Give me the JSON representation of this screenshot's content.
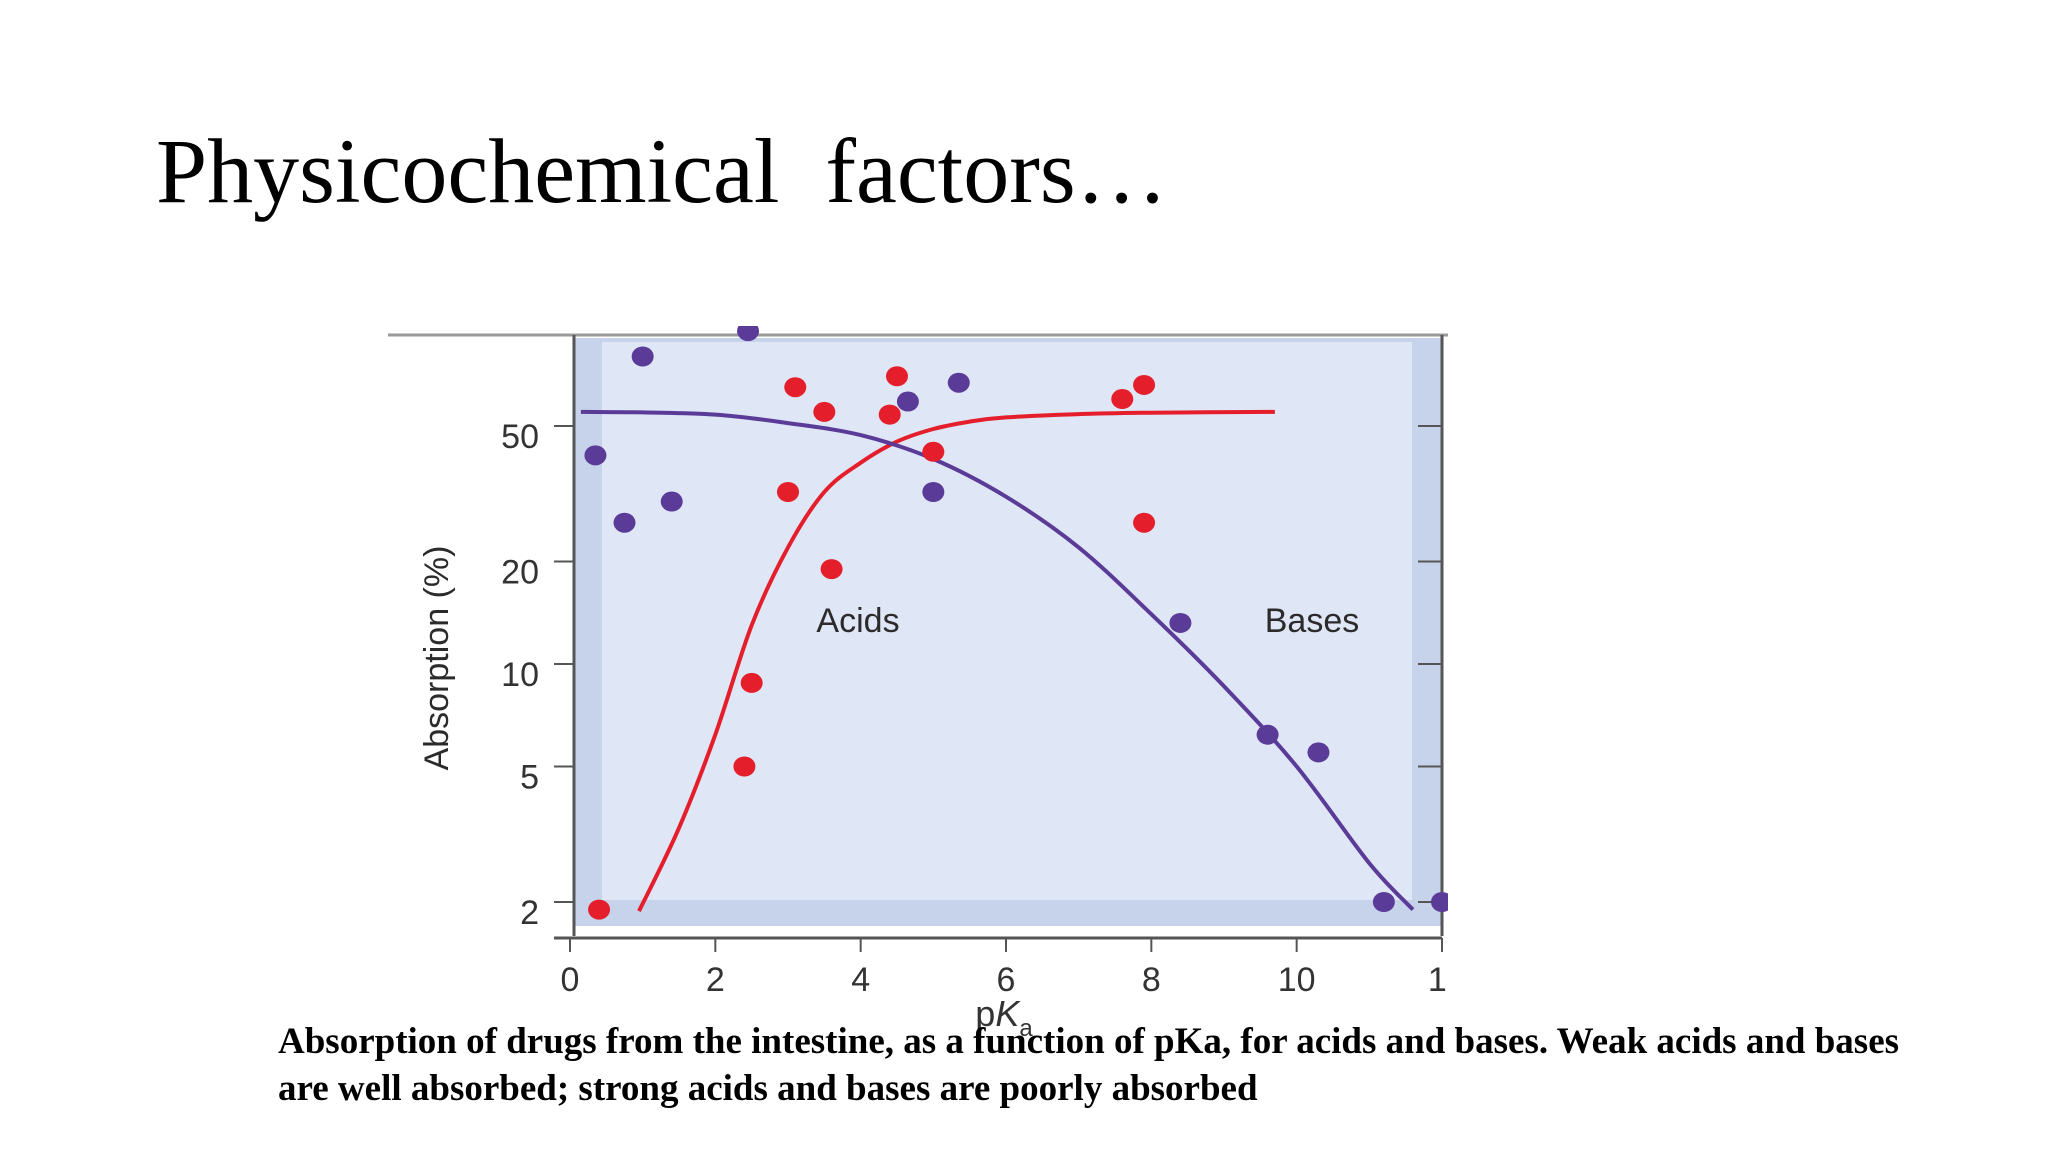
{
  "slide": {
    "title": "Physicochemical  factors…",
    "caption": "Absorption of drugs from the intestine, as a function of pKa, for acids and bases. Weak acids and bases are well absorbed; strong acids and bases are poorly absorbed"
  },
  "chart_data": {
    "type": "scatter",
    "title": "",
    "xlabel": "pKa",
    "ylabel": "Absorption (%)",
    "xlim": [
      0,
      12
    ],
    "ylim": [
      1.75,
      100
    ],
    "yscale": "log",
    "x_ticks": [
      0,
      2,
      4,
      6,
      8,
      10,
      12
    ],
    "x_tick_labels": [
      "0",
      "2",
      "4",
      "6",
      "8",
      "10",
      "1:"
    ],
    "y_ticks": [
      2,
      5,
      10,
      20,
      50
    ],
    "y_tick_labels": [
      "2",
      "5",
      "10",
      "20",
      "50"
    ],
    "grid": false,
    "annotations": [
      "Acids",
      "Bases"
    ],
    "colors": {
      "acids": "#e41e2b",
      "bases": "#5b3b98",
      "plot_background": "#dfe6f5",
      "plot_edge": "#c7d3ea"
    },
    "series": [
      {
        "type": "scatter",
        "color": "#e41e2b",
        "points": [
          {
            "x": 0.4,
            "y": 1.9
          },
          {
            "x": 2.4,
            "y": 5.0
          },
          {
            "x": 2.5,
            "y": 8.8
          },
          {
            "x": 3.0,
            "y": 32
          },
          {
            "x": 3.1,
            "y": 65
          },
          {
            "x": 3.5,
            "y": 55
          },
          {
            "x": 3.6,
            "y": 19
          },
          {
            "x": 4.4,
            "y": 54
          },
          {
            "x": 4.5,
            "y": 70
          },
          {
            "x": 5.0,
            "y": 42
          },
          {
            "x": 7.6,
            "y": 60
          },
          {
            "x": 7.9,
            "y": 66
          },
          {
            "x": 7.9,
            "y": 26
          }
        ]
      },
      {
        "type": "scatter",
        "color": "#5b3b98",
        "points": [
          {
            "x": 0.35,
            "y": 41
          },
          {
            "x": 0.75,
            "y": 26
          },
          {
            "x": 1.0,
            "y": 80
          },
          {
            "x": 1.4,
            "y": 30
          },
          {
            "x": 2.45,
            "y": 95
          },
          {
            "x": 4.65,
            "y": 59
          },
          {
            "x": 5.0,
            "y": 32
          },
          {
            "x": 5.35,
            "y": 67
          },
          {
            "x": 8.4,
            "y": 13.2
          },
          {
            "x": 9.6,
            "y": 6.2
          },
          {
            "x": 10.3,
            "y": 5.5
          },
          {
            "x": 11.2,
            "y": 2.0
          },
          {
            "x": 12.0,
            "y": 2.0
          }
        ]
      },
      {
        "type": "line",
        "color": "#e41e2b",
        "points": [
          {
            "x": 0.95,
            "y": 1.88
          },
          {
            "x": 1.5,
            "y": 3.3
          },
          {
            "x": 2.0,
            "y": 6.2
          },
          {
            "x": 2.5,
            "y": 13
          },
          {
            "x": 3.0,
            "y": 22
          },
          {
            "x": 3.5,
            "y": 32
          },
          {
            "x": 4.0,
            "y": 39
          },
          {
            "x": 4.5,
            "y": 45
          },
          {
            "x": 5.0,
            "y": 49
          },
          {
            "x": 5.5,
            "y": 51.5
          },
          {
            "x": 6.0,
            "y": 53
          },
          {
            "x": 7.0,
            "y": 54.2
          },
          {
            "x": 8.0,
            "y": 54.7
          },
          {
            "x": 9.7,
            "y": 55
          }
        ]
      },
      {
        "type": "line",
        "color": "#5b3b98",
        "points": [
          {
            "x": 0.15,
            "y": 55
          },
          {
            "x": 1.0,
            "y": 54.8
          },
          {
            "x": 2.0,
            "y": 54
          },
          {
            "x": 3.0,
            "y": 51
          },
          {
            "x": 4.0,
            "y": 47
          },
          {
            "x": 5.0,
            "y": 40
          },
          {
            "x": 6.0,
            "y": 31
          },
          {
            "x": 7.0,
            "y": 22
          },
          {
            "x": 8.0,
            "y": 14
          },
          {
            "x": 9.0,
            "y": 8.6
          },
          {
            "x": 10.0,
            "y": 5.0
          },
          {
            "x": 11.0,
            "y": 2.6
          },
          {
            "x": 11.6,
            "y": 1.9
          }
        ]
      }
    ]
  }
}
